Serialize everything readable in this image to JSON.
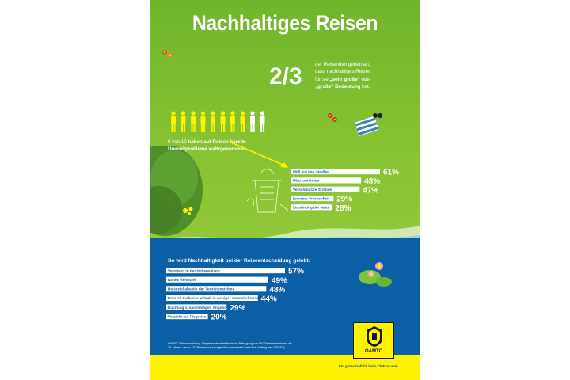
{
  "header": {
    "title": "Nachhaltiges Reisen"
  },
  "stat": {
    "fraction": "2/3",
    "text_line1": "der Reisenden geben an,",
    "text_line2": "dass nachhaltiges Reisen",
    "text_line3_pre": "für sie ",
    "text_line3_bold": "„sehr große“",
    "text_line3_post": " oder",
    "text_line4_bold": "„große“ Bedeutung",
    "text_line4_post": " hat."
  },
  "people": {
    "total": 10,
    "highlighted": 8,
    "highlight_color": "#fff200",
    "other_color": "#ffffff"
  },
  "eight_of_ten": {
    "prefix": "8 von 10 ",
    "bold_line1": "haben auf Reisen bereits",
    "bold_line2": "Umweltprobleme wahrgenommen."
  },
  "section": {
    "title": "So wird Nachhaltigkeit bei der Reiseentscheidung gelebt:"
  },
  "footnote": {
    "line1": "ÖAMTC-Reisemonitoring: Repräsentative telefonische Befragung von 801 Österreicherinnen ab",
    "line2": "15 Jahren; davon 432 Reisende (durchgeführt vom market Institut im Auftrag des ÖAMTC)"
  },
  "logo": {
    "text": "ÖAMTC"
  },
  "slogan": "Ein gutes Gefühl, beim Club zu sein.",
  "colors": {
    "green": "#7dbd2d",
    "water": "#0b5fa5",
    "yellow": "#fff200",
    "bar_text": "#1c5fa6"
  },
  "chart_data": [
    {
      "type": "bar",
      "orientation": "horizontal",
      "title": "",
      "categories": [
        "Müll auf den Straßen",
        "Übertourismus",
        "Verschmutzte Strände",
        "Extreme Trockenheit",
        "Zerstörung der Natur"
      ],
      "values": [
        61,
        48,
        47,
        29,
        28
      ],
      "value_labels": [
        "61%",
        "48%",
        "47%",
        "29%",
        "28%"
      ],
      "unit": "%"
    },
    {
      "type": "bar",
      "orientation": "horizontal",
      "title": "So wird Nachhaltigkeit bei der Reiseentscheidung gelebt:",
      "categories": [
        "Verreisen in der Nebensaison",
        "Nahes Reiseziel",
        "Reiseziel abseits der Touristenströme",
        "Kein All-Inclusive Urlaub in weniger entwickelten Ländern",
        "Buchung v. nachhaltigen Angeboten",
        "Verzicht auf Flugreise"
      ],
      "values": [
        57,
        49,
        48,
        44,
        29,
        20
      ],
      "value_labels": [
        "57%",
        "49%",
        "48%",
        "44%",
        "29%",
        "20%"
      ],
      "unit": "%"
    }
  ]
}
